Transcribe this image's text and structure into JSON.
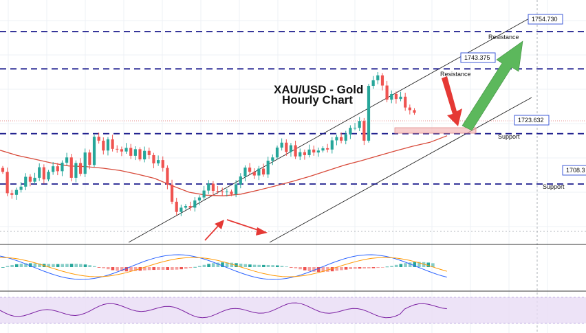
{
  "chart_data": {
    "type": "candlestick",
    "title_line1": "XAU/USD - Gold",
    "title_line2": "Hourly Chart",
    "ylim": [
      1696,
      1758
    ],
    "grid": true,
    "price_levels": [
      {
        "value": 1754.73,
        "label": "1754.730"
      },
      {
        "value": 1743.375,
        "label": "1743.375"
      },
      {
        "value": 1723.632,
        "label": "1723.632"
      },
      {
        "value": 1708.3,
        "label": "1708.3"
      }
    ],
    "zones": [
      {
        "label": "Resistance",
        "value": 1754.73
      },
      {
        "label": "Resistance",
        "value": 1743.375
      },
      {
        "label": "Support",
        "value": 1723.632
      },
      {
        "label": "Support",
        "value": 1708.3
      }
    ],
    "candles_close": [
      1712.0,
      1705.5,
      1705.0,
      1706.5,
      1707.5,
      1710.5,
      1709.0,
      1710.2,
      1713.4,
      1709.7,
      1712.0,
      1713.7,
      1712.2,
      1714.8,
      1716.4,
      1710.2,
      1714.7,
      1711.4,
      1717.9,
      1714.1,
      1722.7,
      1721.5,
      1718.5,
      1721.9,
      1719.0,
      1718.9,
      1718.2,
      1719.3,
      1716.9,
      1718.9,
      1715.8,
      1718.4,
      1717.1,
      1714.6,
      1715.6,
      1713.2,
      1708.1,
      1702.9,
      1699.8,
      1701.1,
      1701.6,
      1701.1,
      1703.3,
      1704.2,
      1706.3,
      1708.4,
      1706.2,
      1706.0,
      1705.8,
      1706.0,
      1705.2,
      1708.2,
      1710.6,
      1713.3,
      1712.0,
      1710.9,
      1713.0,
      1711.2,
      1715.4,
      1716.4,
      1719.4,
      1720.9,
      1718.1,
      1720.1,
      1716.7,
      1718.0,
      1717.1,
      1718.8,
      1717.9,
      1718.5,
      1719.2,
      1718.8,
      1721.6,
      1722.6,
      1721.5,
      1723.4,
      1725.4,
      1725.4,
      1727.5,
      1721.5,
      1738.2,
      1739.9,
      1741.4,
      1738.3,
      1734.0,
      1735.7,
      1734.2,
      1734.9,
      1731.6,
      1730.8,
      1730.0
    ],
    "ma_values": [
      1718.6,
      1717.0,
      1715.9,
      1714.7,
      1713.8,
      1713.6,
      1713.1,
      1712.4,
      1711.3,
      1710.0,
      1707.8,
      1705.8,
      1704.9,
      1704.7,
      1705.2,
      1706.4,
      1707.7,
      1709.1,
      1710.6,
      1712.3,
      1714.0,
      1715.4,
      1716.9,
      1718.4,
      1719.8,
      1721.0,
      1723.0
    ],
    "macd": {
      "zero": 0,
      "range": [
        -1,
        1
      ]
    },
    "rsi": {
      "range": [
        0,
        100
      ]
    }
  }
}
